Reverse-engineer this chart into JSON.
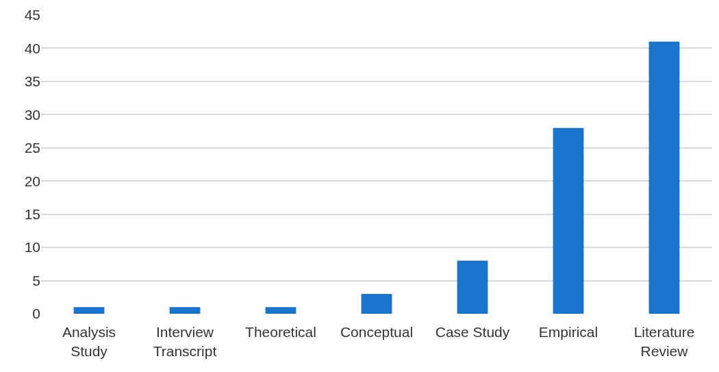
{
  "chart_data": {
    "type": "bar",
    "categories": [
      "Analysis\nStudy",
      "Interview\nTranscript",
      "Theoretical",
      "Conceptual",
      "Case Study",
      "Empirical",
      "Literature\nReview"
    ],
    "values": [
      1,
      1,
      1,
      3,
      8,
      28,
      41
    ],
    "color": "#1874cd",
    "ylim": [
      0,
      45
    ],
    "yticks": [
      0,
      5,
      10,
      15,
      20,
      25,
      30,
      35,
      40,
      45
    ],
    "grid": "y"
  }
}
